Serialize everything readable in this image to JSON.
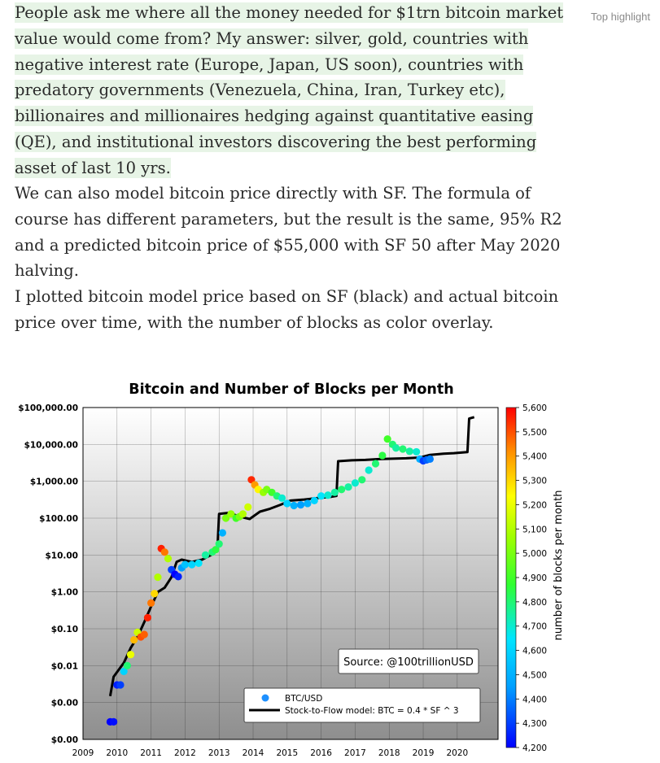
{
  "article": {
    "top_highlight_label": "Top highlight",
    "p1": "People ask me where all the money needed for $1trn bitcoin market value would come from? My answer: silver, gold, countries with negative interest rate (Europe, Japan, US soon), countries with predatory governments (Venezuela, China, Iran, Turkey etc), billionaires and millionaires hedging against quantitative easing (QE), and institutional investors discovering the best performing asset of last 10 yrs.",
    "p2": "We can also model bitcoin price directly with SF. The formula of course has different parameters, but the result is the same, 95% R2 and a predicted bitcoin price of $55,000 with SF 50 after May 2020 halving.",
    "p3": "I plotted bitcoin model price based on SF (black) and actual bitcoin price over time, with the number of blocks as color overlay."
  },
  "colors": {
    "highlight": "#e7f4e6",
    "text": "#292929",
    "muted": "#8a8a8a",
    "model_line": "#000000"
  },
  "chart_data": {
    "type": "scatter",
    "title": "Bitcoin and Number of Blocks per Month",
    "xlabel": "",
    "ylabel": "",
    "x_ticks": [
      "2009",
      "2010",
      "2011",
      "2012",
      "2013",
      "2014",
      "2015",
      "2016",
      "2017",
      "2018",
      "2019",
      "2020"
    ],
    "xlim": [
      2009,
      2021.2
    ],
    "y_scale": "log",
    "y_ticks": [
      {
        "v": 0.0001,
        "label": "$0.00"
      },
      {
        "v": 0.001,
        "label": "$0.00"
      },
      {
        "v": 0.01,
        "label": "$0.01"
      },
      {
        "v": 0.1,
        "label": "$0.10"
      },
      {
        "v": 1,
        "label": "$1.00"
      },
      {
        "v": 10,
        "label": "$10.00"
      },
      {
        "v": 100,
        "label": "$100.00"
      },
      {
        "v": 1000,
        "label": "$1,000.00"
      },
      {
        "v": 10000,
        "label": "$10,000.00"
      },
      {
        "v": 100000,
        "label": "$100,000.00"
      }
    ],
    "ylim": [
      0.0001,
      100000
    ],
    "grid": true,
    "colorbar": {
      "label": "number of blocks per month",
      "range": [
        4200,
        5600
      ],
      "ticks": [
        "4,200",
        "4,300",
        "4,400",
        "4,500",
        "4,600",
        "4,700",
        "4,800",
        "4,900",
        "5,000",
        "5,100",
        "5,200",
        "5,300",
        "5,400",
        "5,500",
        "5,600"
      ]
    },
    "annotation": "Source: @100trillionUSD",
    "legend": {
      "placement": "bottom-center",
      "entries": [
        "BTC/USD",
        "Stock-to-Flow model: BTC = 0.4 * SF ^ 3"
      ]
    },
    "series": [
      {
        "name": "Stock-to-Flow model: BTC = 0.4 * SF ^ 3",
        "kind": "line",
        "points": [
          [
            2009.8,
            0.0015
          ],
          [
            2009.9,
            0.005
          ],
          [
            2010.2,
            0.012
          ],
          [
            2010.4,
            0.03
          ],
          [
            2010.6,
            0.06
          ],
          [
            2010.8,
            0.15
          ],
          [
            2011.0,
            0.4
          ],
          [
            2011.2,
            1.0
          ],
          [
            2011.4,
            1.3
          ],
          [
            2011.6,
            2.5
          ],
          [
            2011.75,
            6.5
          ],
          [
            2011.9,
            7.5
          ],
          [
            2012.2,
            6.5
          ],
          [
            2012.5,
            7.5
          ],
          [
            2012.8,
            10.5
          ],
          [
            2012.95,
            14
          ],
          [
            2013.0,
            130
          ],
          [
            2013.3,
            140
          ],
          [
            2013.6,
            110
          ],
          [
            2013.9,
            95
          ],
          [
            2014.2,
            150
          ],
          [
            2014.5,
            180
          ],
          [
            2014.8,
            230
          ],
          [
            2015.1,
            300
          ],
          [
            2015.5,
            320
          ],
          [
            2015.9,
            350
          ],
          [
            2016.3,
            380
          ],
          [
            2016.45,
            400
          ],
          [
            2016.5,
            3500
          ],
          [
            2016.9,
            3700
          ],
          [
            2017.3,
            3800
          ],
          [
            2017.7,
            4000
          ],
          [
            2018.1,
            4100
          ],
          [
            2018.5,
            4200
          ],
          [
            2018.9,
            4400
          ],
          [
            2019.2,
            5200
          ],
          [
            2019.6,
            5600
          ],
          [
            2019.9,
            5800
          ],
          [
            2020.3,
            6200
          ],
          [
            2020.35,
            50000
          ],
          [
            2020.5,
            55000
          ]
        ]
      },
      {
        "name": "BTC/USD",
        "kind": "scatter",
        "points": [
          [
            2009.8,
            0.0003,
            4200
          ],
          [
            2009.9,
            0.0003,
            4220
          ],
          [
            2010.0,
            0.003,
            4250
          ],
          [
            2010.1,
            0.003,
            4300
          ],
          [
            2010.2,
            0.007,
            4600
          ],
          [
            2010.3,
            0.01,
            4800
          ],
          [
            2010.4,
            0.02,
            5200
          ],
          [
            2010.5,
            0.05,
            5350
          ],
          [
            2010.6,
            0.08,
            5150
          ],
          [
            2010.7,
            0.06,
            5500
          ],
          [
            2010.8,
            0.07,
            5480
          ],
          [
            2010.9,
            0.2,
            5560
          ],
          [
            2011.0,
            0.5,
            5450
          ],
          [
            2011.1,
            0.9,
            5300
          ],
          [
            2011.2,
            2.5,
            5100
          ],
          [
            2011.3,
            15,
            5560
          ],
          [
            2011.4,
            12,
            5450
          ],
          [
            2011.5,
            8,
            5100
          ],
          [
            2011.6,
            4,
            4300
          ],
          [
            2011.7,
            3,
            4200
          ],
          [
            2011.8,
            2.6,
            4250
          ],
          [
            2011.9,
            4.5,
            4450
          ],
          [
            2012.0,
            5.5,
            4550
          ],
          [
            2012.2,
            5.5,
            4600
          ],
          [
            2012.4,
            6,
            4650
          ],
          [
            2012.6,
            10,
            4750
          ],
          [
            2012.8,
            12,
            4800
          ],
          [
            2012.9,
            14,
            4850
          ],
          [
            2013.0,
            20,
            4800
          ],
          [
            2013.1,
            40,
            4500
          ],
          [
            2013.2,
            100,
            5000
          ],
          [
            2013.35,
            130,
            5050
          ],
          [
            2013.5,
            100,
            4900
          ],
          [
            2013.6,
            110,
            5000
          ],
          [
            2013.7,
            130,
            5100
          ],
          [
            2013.85,
            200,
            5150
          ],
          [
            2013.95,
            1100,
            5550
          ],
          [
            2014.05,
            800,
            5400
          ],
          [
            2014.15,
            600,
            5250
          ],
          [
            2014.3,
            500,
            5050
          ],
          [
            2014.4,
            600,
            5000
          ],
          [
            2014.55,
            500,
            4900
          ],
          [
            2014.7,
            400,
            4800
          ],
          [
            2014.85,
            350,
            4700
          ],
          [
            2015.0,
            250,
            4600
          ],
          [
            2015.2,
            220,
            4500
          ],
          [
            2015.4,
            230,
            4450
          ],
          [
            2015.6,
            250,
            4500
          ],
          [
            2015.8,
            300,
            4600
          ],
          [
            2016.0,
            400,
            4650
          ],
          [
            2016.2,
            420,
            4700
          ],
          [
            2016.4,
            500,
            4750
          ],
          [
            2016.6,
            600,
            4800
          ],
          [
            2016.8,
            700,
            4750
          ],
          [
            2017.0,
            900,
            4700
          ],
          [
            2017.2,
            1100,
            4800
          ],
          [
            2017.4,
            2000,
            4700
          ],
          [
            2017.6,
            3000,
            4800
          ],
          [
            2017.8,
            5000,
            4850
          ],
          [
            2017.95,
            14000,
            4900
          ],
          [
            2018.1,
            10000,
            4800
          ],
          [
            2018.2,
            8000,
            4750
          ],
          [
            2018.4,
            7500,
            4800
          ],
          [
            2018.6,
            6500,
            4750
          ],
          [
            2018.8,
            6300,
            4700
          ],
          [
            2018.9,
            4000,
            4500
          ],
          [
            2019.0,
            3600,
            4300
          ],
          [
            2019.1,
            3800,
            4350
          ],
          [
            2019.2,
            4000,
            4400
          ]
        ]
      }
    ]
  }
}
